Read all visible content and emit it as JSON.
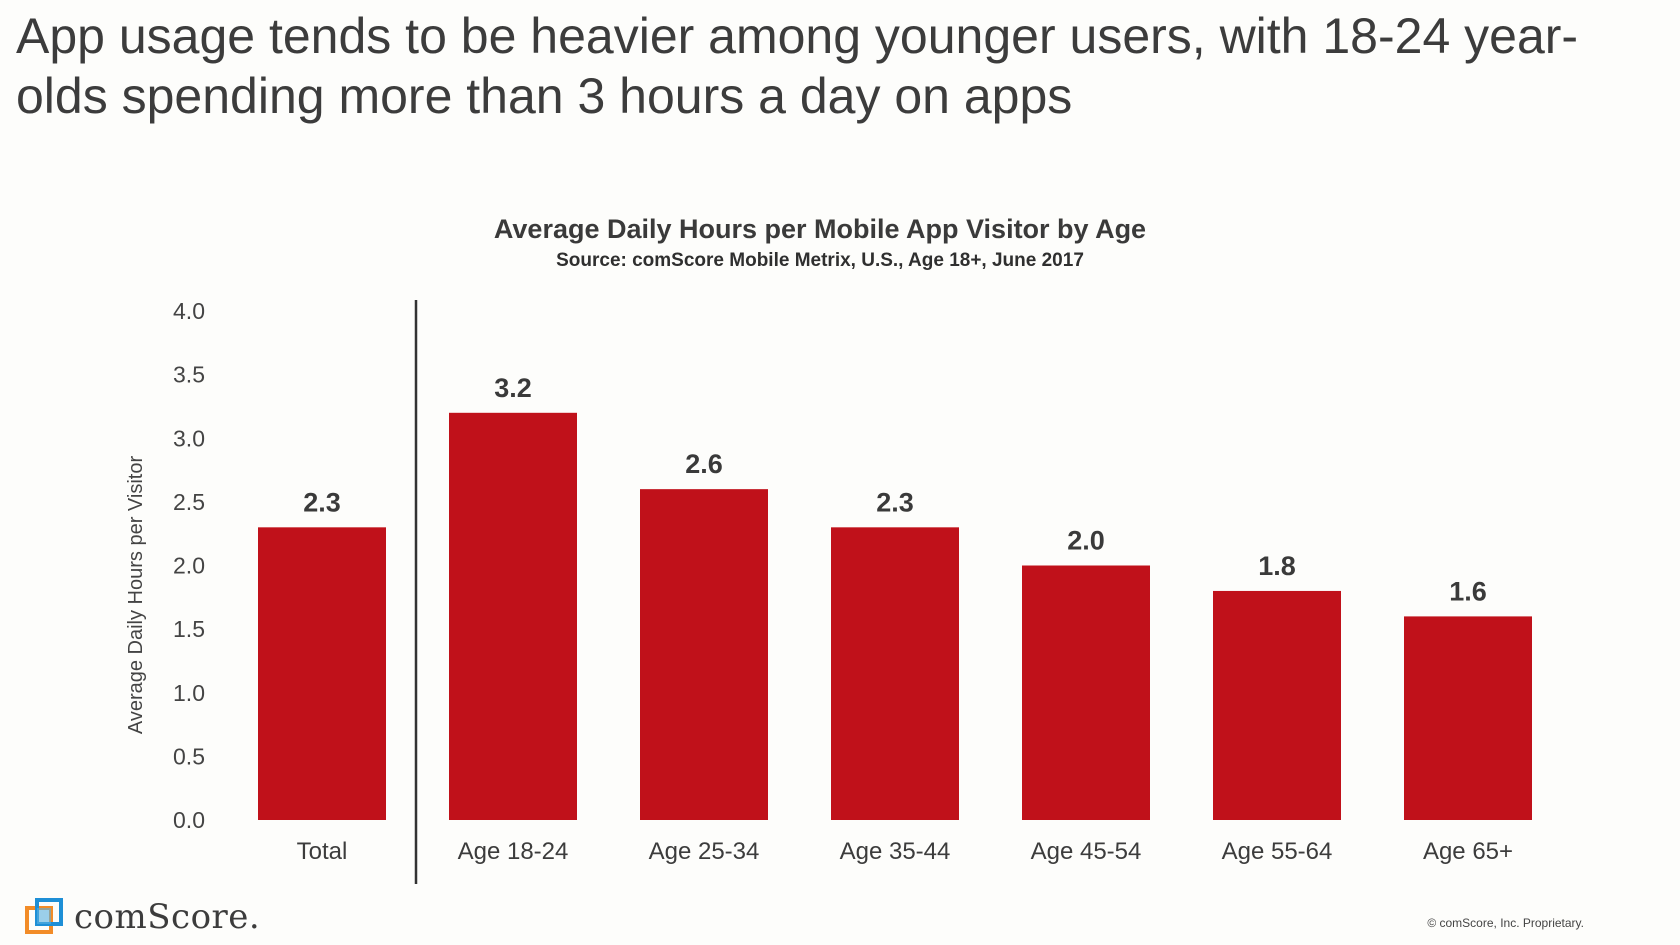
{
  "headline": "App usage tends to be heavier among younger users, with 18-24 year-olds spending more than 3 hours a day on apps",
  "logo_text": "comScore.",
  "footer_note": "© comScore, Inc. Proprietary.",
  "colors": {
    "bar": "#c0111a",
    "text": "#3c3c3c",
    "divider": "#333333"
  },
  "chart_data": {
    "type": "bar",
    "title": "Average Daily Hours per Mobile App Visitor by Age",
    "subtitle": "Source: comScore Mobile Metrix, U.S., Age 18+, June 2017",
    "xlabel": "",
    "ylabel": "Average Daily Hours per Visitor",
    "ylim": [
      0,
      4
    ],
    "yticks": [
      "0.0",
      "0.5",
      "1.0",
      "1.5",
      "2.0",
      "2.5",
      "3.0",
      "3.5",
      "4.0"
    ],
    "categories": [
      "Total",
      "Age 18-24",
      "Age 25-34",
      "Age 35-44",
      "Age 45-54",
      "Age 55-64",
      "Age 65+"
    ],
    "values": [
      2.3,
      3.2,
      2.6,
      2.3,
      2.0,
      1.8,
      1.6
    ],
    "value_labels": [
      "2.3",
      "3.2",
      "2.6",
      "2.3",
      "2.0",
      "1.8",
      "1.6"
    ],
    "grid": false,
    "legend": "none"
  }
}
